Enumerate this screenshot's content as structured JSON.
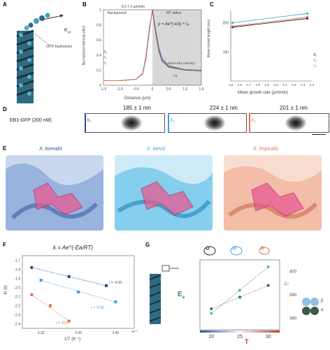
{
  "panel_letters": [
    "A",
    "B",
    "C",
    "D",
    "E",
    "F",
    "G"
  ],
  "panelA": {
    "k_label": "K",
    "k_sub": "off",
    "gtp_label": "GTP hydrolysis"
  },
  "panelB": {
    "top_label": "8.2 ± 2 µm/min",
    "background_label": "Background",
    "lattice_label": "MT lattice",
    "equation": "y = Ae^(-x/λ) + I₀",
    "legend": [
      "X₁",
      "X₂",
      "X₃"
    ],
    "legend_extra": [
      "Mean EB1 intensity",
      "Fit"
    ],
    "xlabel": "Distance (µm)",
    "ylabel": "Normalized intensity (AU)",
    "yticks": [
      "0",
      "0.2",
      "0.4",
      "0.6",
      "0.8",
      "1"
    ],
    "xticks": [
      "-1.5",
      "-1.0",
      "-0.5",
      "0",
      "0.5",
      "1.0",
      "1.5"
    ]
  },
  "panelC": {
    "xlabel": "Mean growth rate (µm/min)",
    "ylabel": "Mean comet length (nm)",
    "legend": [
      "X₁",
      "X₂",
      "X₃"
    ],
    "yticks": [
      "100",
      "200"
    ],
    "xticks": [
      "1.5",
      "1.6",
      "1.7",
      "1.8",
      "1.9",
      "2.0",
      "2.1",
      "2.2",
      "2.3",
      "2.4"
    ]
  },
  "panelD": {
    "label": "EB1-GFP (200 nM)",
    "strips": [
      {
        "species": "X₁",
        "value": "185 ± 1 nm",
        "color": "#2a4c9a"
      },
      {
        "species": "X₂",
        "value": "224 ± 1 nm",
        "color": "#3aa0dc"
      },
      {
        "species": "X₃",
        "value": "201 ± 1 nm",
        "color": "#e07050"
      }
    ]
  },
  "panelE": {
    "titles": [
      "X. borealis",
      "X. laevis",
      "X. tropicalis"
    ],
    "colors": [
      "#6f96cf",
      "#4ab7e6",
      "#f0a487"
    ]
  },
  "panelF": {
    "equation": "k = Ae^(-Ea/RT)",
    "xlabel": "1/T (K⁻¹)",
    "ylabel": "ln (k)",
    "xtick_exp": "10⁻³",
    "xticks": [
      "3.32",
      "3.36",
      "3.40"
    ],
    "yticks": [
      "-1.7",
      "-1.8",
      "-1.9",
      "-2.0",
      "-2.1",
      "-2.2",
      "-2.3",
      "-2.4"
    ],
    "r_labels": [
      "r = -0.91",
      "r = -0.92",
      "r = -0.97"
    ]
  },
  "panelG": {
    "ea_label": "E",
    "ea_sub": "a",
    "ylabel_right": "Å²",
    "yticks": [
      "400",
      "390",
      "380"
    ],
    "xticks": [
      "20",
      "25",
      "30"
    ],
    "xlabel": "T",
    "legend": [
      "β",
      "α"
    ]
  },
  "chart_data": [
    {
      "type": "line",
      "title": "",
      "xlabel": "Distance (µm)",
      "ylabel": "Normalized intensity (AU)",
      "xlim": [
        -1.5,
        1.5
      ],
      "ylim": [
        0,
        1
      ],
      "x": [
        -1.5,
        -1.0,
        -0.5,
        -0.3,
        -0.2,
        -0.1,
        0,
        0.1,
        0.2,
        0.3,
        0.5,
        1.0,
        1.5
      ],
      "series": [
        {
          "name": "X₁",
          "values": [
            0.06,
            0.06,
            0.08,
            0.15,
            0.35,
            0.7,
            1.0,
            0.7,
            0.45,
            0.32,
            0.24,
            0.2,
            0.19
          ]
        },
        {
          "name": "X₂",
          "values": [
            0.06,
            0.06,
            0.08,
            0.16,
            0.38,
            0.74,
            1.0,
            0.74,
            0.5,
            0.36,
            0.26,
            0.21,
            0.2
          ]
        },
        {
          "name": "X₃",
          "values": [
            0.06,
            0.06,
            0.08,
            0.15,
            0.36,
            0.72,
            1.0,
            0.72,
            0.47,
            0.34,
            0.25,
            0.2,
            0.19
          ]
        }
      ]
    },
    {
      "type": "scatter",
      "title": "",
      "xlabel": "Mean growth rate (µm/min)",
      "ylabel": "Mean comet length (nm)",
      "xlim": [
        1.5,
        2.4
      ],
      "ylim": [
        0,
        240
      ],
      "series": [
        {
          "name": "X₁",
          "x": [
            1.52,
            2.35
          ],
          "values": [
            185,
            215
          ]
        },
        {
          "name": "X₂",
          "x": [
            1.52,
            2.35
          ],
          "values": [
            200,
            232
          ]
        },
        {
          "name": "X₃",
          "x": [
            1.52,
            2.35
          ],
          "values": [
            188,
            220
          ]
        }
      ]
    },
    {
      "type": "scatter",
      "title": "",
      "xlabel": "1/T (K⁻¹)",
      "ylabel": "ln (k)",
      "xlim": [
        3.3,
        3.42
      ],
      "ylim": [
        -2.45,
        -1.65
      ],
      "series": [
        {
          "name": "X₁",
          "x": [
            3.31,
            3.35,
            3.39
          ],
          "values": [
            -1.78,
            -1.88,
            -1.98
          ]
        },
        {
          "name": "X₂",
          "x": [
            3.32,
            3.36,
            3.4
          ],
          "values": [
            -1.92,
            -2.05,
            -2.16
          ]
        },
        {
          "name": "X₃",
          "x": [
            3.31,
            3.33,
            3.35
          ],
          "values": [
            -2.08,
            -2.2,
            -2.37
          ]
        }
      ]
    },
    {
      "type": "scatter",
      "title": "",
      "xlabel": "T",
      "ylabel": "Å²",
      "xlim": [
        18,
        32
      ],
      "ylim": [
        375,
        405
      ],
      "series": [
        {
          "name": "β",
          "x": [
            20,
            25,
            30
          ],
          "values": [
            384,
            389,
            394
          ]
        },
        {
          "name": "α",
          "x": [
            20,
            25,
            30
          ],
          "values": [
            382,
            392,
            402
          ]
        }
      ]
    }
  ]
}
